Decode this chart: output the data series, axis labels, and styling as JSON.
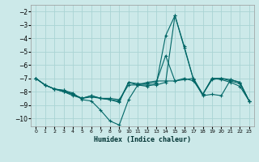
{
  "xlabel": "Humidex (Indice chaleur)",
  "bg_color": "#cce9e9",
  "grid_color": "#aad4d4",
  "line_color": "#006666",
  "xlim": [
    -0.5,
    23.5
  ],
  "ylim": [
    -10.6,
    -1.5
  ],
  "xticks": [
    0,
    1,
    2,
    3,
    4,
    5,
    6,
    7,
    8,
    9,
    10,
    11,
    12,
    13,
    14,
    15,
    16,
    17,
    18,
    19,
    20,
    21,
    22,
    23
  ],
  "yticks": [
    -2,
    -3,
    -4,
    -5,
    -6,
    -7,
    -8,
    -9,
    -10
  ],
  "series": [
    {
      "x": [
        0,
        1,
        2,
        3,
        4,
        5,
        6,
        7,
        8,
        9,
        10,
        11,
        12,
        13,
        14,
        15,
        16,
        17,
        18,
        19,
        20,
        21,
        22,
        23
      ],
      "y": [
        -7.0,
        -7.5,
        -7.8,
        -7.9,
        -8.1,
        -8.6,
        -8.7,
        -9.4,
        -10.2,
        -10.5,
        -8.6,
        -7.5,
        -7.3,
        -7.2,
        -7.2,
        -7.2,
        -7.1,
        -7.0,
        -8.2,
        -7.0,
        -7.1,
        -7.3,
        -7.6,
        -8.7
      ]
    },
    {
      "x": [
        0,
        1,
        2,
        3,
        4,
        5,
        6,
        7,
        8,
        9,
        10,
        11,
        12,
        13,
        14,
        15,
        16,
        17,
        18,
        19,
        20,
        21,
        22,
        23
      ],
      "y": [
        -7.0,
        -7.5,
        -7.8,
        -7.9,
        -8.2,
        -8.5,
        -8.3,
        -8.5,
        -8.5,
        -8.6,
        -7.5,
        -7.5,
        -7.5,
        -7.5,
        -7.3,
        -2.3,
        -4.7,
        -7.1,
        -8.2,
        -7.1,
        -7.0,
        -7.2,
        -7.4,
        -8.7
      ]
    },
    {
      "x": [
        0,
        1,
        2,
        3,
        4,
        5,
        6,
        7,
        8,
        9,
        10,
        11,
        12,
        13,
        14,
        15,
        16,
        17,
        18,
        19,
        20,
        21,
        22,
        23
      ],
      "y": [
        -7.0,
        -7.5,
        -7.8,
        -8.0,
        -8.2,
        -8.5,
        -8.3,
        -8.5,
        -8.6,
        -8.7,
        -7.3,
        -7.5,
        -7.6,
        -7.4,
        -3.8,
        -2.3,
        -4.6,
        -7.1,
        -8.3,
        -8.2,
        -8.3,
        -7.1,
        -7.3,
        -8.7
      ]
    },
    {
      "x": [
        0,
        1,
        2,
        3,
        4,
        5,
        6,
        7,
        8,
        9,
        10,
        11,
        12,
        13,
        14,
        15,
        16,
        17,
        18,
        19,
        20,
        21,
        22,
        23
      ],
      "y": [
        -7.0,
        -7.5,
        -7.8,
        -8.0,
        -8.3,
        -8.5,
        -8.4,
        -8.5,
        -8.6,
        -8.8,
        -7.3,
        -7.4,
        -7.4,
        -7.3,
        -5.3,
        -7.2,
        -7.0,
        -7.2,
        -8.2,
        -7.0,
        -7.0,
        -7.1,
        -7.3,
        -8.7
      ]
    }
  ]
}
